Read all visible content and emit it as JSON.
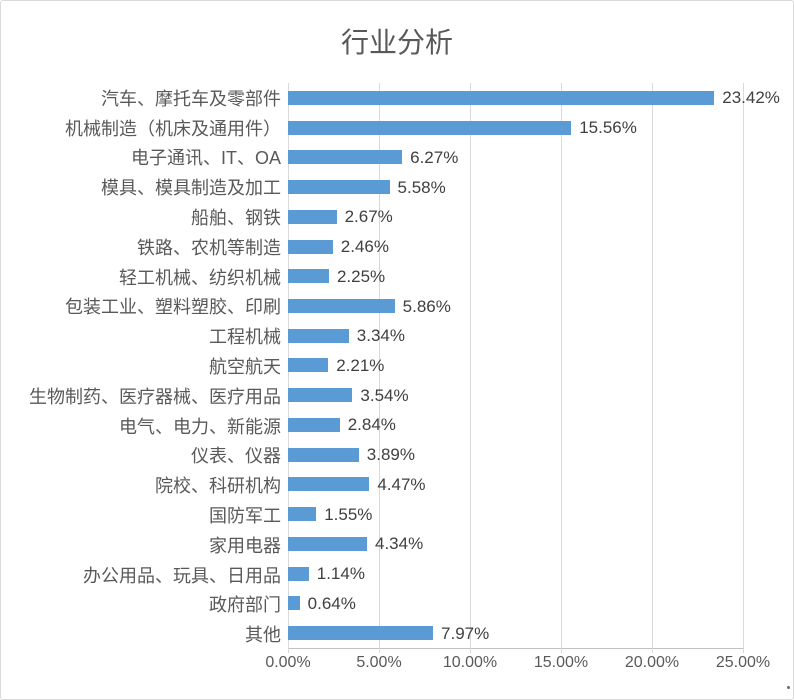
{
  "chart_data": {
    "type": "bar",
    "orientation": "horizontal",
    "title": "行业分析",
    "xlabel": "",
    "ylabel": "",
    "xlim": [
      0,
      25
    ],
    "grid": true,
    "legend": false,
    "x_ticks": [
      "0.00%",
      "5.00%",
      "10.00%",
      "15.00%",
      "20.00%",
      "25.00%"
    ],
    "categories": [
      "汽车、摩托车及零部件",
      "机械制造（机床及通用件）",
      "电子通讯、IT、OA",
      "模具、模具制造及加工",
      "船舶、钢铁",
      "铁路、农机等制造",
      "轻工机械、纺织机械",
      "包装工业、塑料塑胶、印刷",
      "工程机械",
      "航空航天",
      "生物制药、医疗器械、医疗用品",
      "电气、电力、新能源",
      "仪表、仪器",
      "院校、科研机构",
      "国防军工",
      "家用电器",
      "办公用品、玩具、日用品",
      "政府部门",
      "其他"
    ],
    "values": [
      23.42,
      15.56,
      6.27,
      5.58,
      2.67,
      2.46,
      2.25,
      5.86,
      3.34,
      2.21,
      3.54,
      2.84,
      3.89,
      4.47,
      1.55,
      4.34,
      1.14,
      0.64,
      7.97
    ],
    "value_labels": [
      "23.42%",
      "15.56%",
      "6.27%",
      "5.58%",
      "2.67%",
      "2.46%",
      "2.25%",
      "5.86%",
      "3.34%",
      "2.21%",
      "3.54%",
      "2.84%",
      "3.89%",
      "4.47%",
      "1.55%",
      "4.34%",
      "1.14%",
      "0.64%",
      "7.97%"
    ],
    "colors": {
      "bar": "#5B9BD5",
      "title": "#595959",
      "category_label": "#595959",
      "value_label": "#404040",
      "gridline": "#D9D9D9",
      "axis_line": "#C0C0C0",
      "border": "#D9D9D9"
    }
  }
}
